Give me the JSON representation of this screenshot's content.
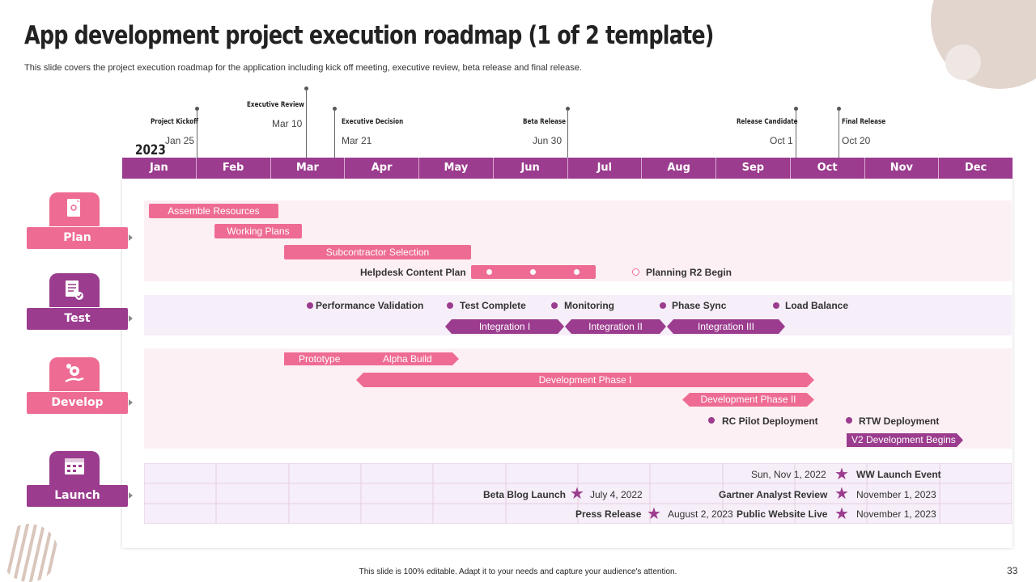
{
  "header": {
    "title": "App development project execution roadmap (1 of 2 template)",
    "subtitle": "This slide covers the project execution roadmap for the application including kick off meeting, executive review, beta release and final release."
  },
  "milestones": [
    {
      "title": "Project  Kickoff",
      "date": "Jan 25"
    },
    {
      "title": "Executive  Review",
      "date": "Mar 10"
    },
    {
      "title": "Executive  Decision",
      "date": "Mar 21"
    },
    {
      "title": "Beta  Release",
      "date": "Jun 30"
    },
    {
      "title": "Release  Candidate",
      "date": "Oct 1"
    },
    {
      "title": "Final  Release",
      "date": "Oct 20"
    }
  ],
  "year": "2023",
  "months": [
    "Jan",
    "Feb",
    "Mar",
    "Apr",
    "May",
    "Jun",
    "Jul",
    "Aug",
    "Sep",
    "Oct",
    "Nov",
    "Dec"
  ],
  "categories": {
    "plan": "Plan",
    "test": "Test",
    "develop": "Develop",
    "launch": "Launch"
  },
  "plan": {
    "assemble": "Assemble Resources",
    "working": "Working Plans",
    "subcontractor": "Subcontractor Selection",
    "helpdesk": "Helpdesk Content Plan",
    "r2": "Planning  R2 Begin"
  },
  "test": {
    "perf": "Performance Validation",
    "complete": "Test Complete",
    "monitoring": "Monitoring",
    "phasesync": "Phase Sync",
    "loadbalance": "Load Balance",
    "int1": "Integration I",
    "int2": "Integration II",
    "int3": "Integration III"
  },
  "develop": {
    "prototype": "Prototype",
    "alpha": "Alpha Build",
    "phase1": "Development Phase I",
    "phase2": "Development Phase II",
    "rcpilot": "RC Pilot Deployment",
    "rtw": "RTW Deployment",
    "v2": "V2 Development Begins"
  },
  "launch": {
    "row1_date": "Sun, Nov 1, 2022",
    "row1_event": "WW Launch Event",
    "row2_a_label": "Beta Blog  Launch",
    "row2_a_date": "July 4, 2022",
    "row2_b_label": "Gartner Analyst Review",
    "row2_b_date": "November 1, 2023",
    "row3_a_label": "Press Release",
    "row3_a_date": "August 2, 2023",
    "row3_b_label": "Public Website Live",
    "row3_b_date": "November 1, 2023"
  },
  "footer": {
    "note": "This slide is 100% editable. Adapt it to your needs and capture your audience's attention.",
    "page": "33"
  },
  "colors": {
    "purple": "#9b3c8e",
    "pink": "#ee6c93",
    "band_pink": "#fdf0f4",
    "band_purple": "#f6eef8"
  }
}
